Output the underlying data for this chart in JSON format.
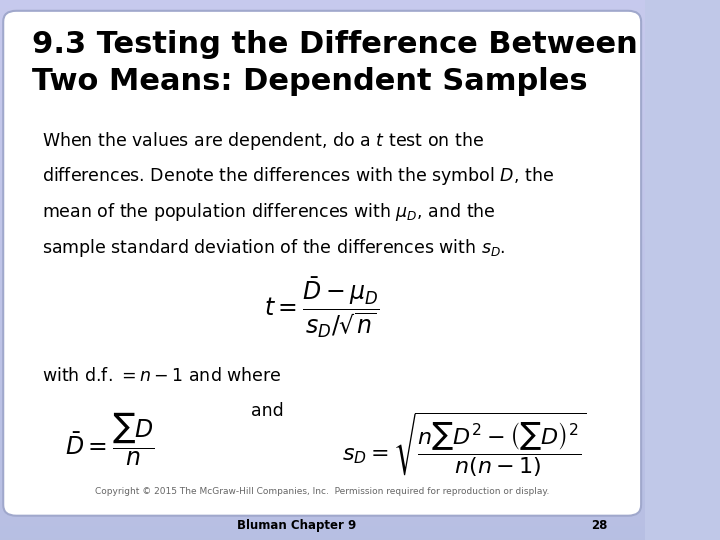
{
  "title_line1": "9.3 Testing the Difference Between",
  "title_line2": "Two Means: Dependent Samples",
  "title_fontsize": 22,
  "bg_color_top": "#c8cce8",
  "bg_color": "#c0c8e8",
  "card_color": "#ffffff",
  "body_text_fontsize": 12.5,
  "copyright": "Copyright © 2015 The McGraw-Hill Companies, Inc.  Permission required for reproduction or display.",
  "footer": "Bluman Chapter 9",
  "page": "28",
  "formula_t": "$t = \\dfrac{\\bar{D} - \\mu_D}{s_D / \\sqrt{n}}$",
  "formula_df": "with d.f. $= n - 1$ and where",
  "formula_Dbar": "$\\bar{D} = \\dfrac{\\sum D}{n}$",
  "formula_and": "and",
  "formula_sD": "$s_D = \\sqrt{\\dfrac{n\\sum D^2 - \\left(\\sum D\\right)^2}{n\\left(n-1\\right)}}$"
}
